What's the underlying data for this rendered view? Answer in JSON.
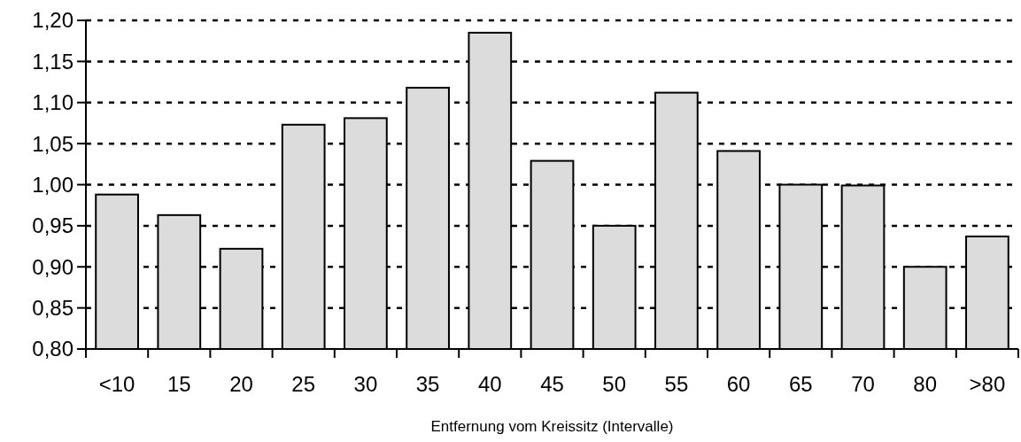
{
  "chart_data": {
    "type": "bar",
    "xlabel": "Entfernung vom Kreissitz (Intervalle)",
    "categories": [
      "<10",
      "15",
      "20",
      "25",
      "30",
      "35",
      "40",
      "45",
      "50",
      "55",
      "60",
      "65",
      "70",
      "80",
      ">80"
    ],
    "values": [
      0.988,
      0.963,
      0.922,
      1.073,
      1.081,
      1.118,
      1.185,
      1.029,
      0.95,
      1.112,
      1.041,
      1.0,
      0.999,
      0.9,
      0.937
    ],
    "color": "#dcdcdc",
    "ylim": [
      0.8,
      1.2
    ],
    "yticks": [
      {
        "value": 0.8,
        "label": "0,80"
      },
      {
        "value": 0.85,
        "label": "0,85"
      },
      {
        "value": 0.9,
        "label": "0,90"
      },
      {
        "value": 0.95,
        "label": "0,95"
      },
      {
        "value": 1.0,
        "label": "1,00"
      },
      {
        "value": 1.05,
        "label": "1,05"
      },
      {
        "value": 1.1,
        "label": "1,10"
      },
      {
        "value": 1.15,
        "label": "1,15"
      },
      {
        "value": 1.2,
        "label": "1,20"
      }
    ],
    "grid": "y"
  }
}
